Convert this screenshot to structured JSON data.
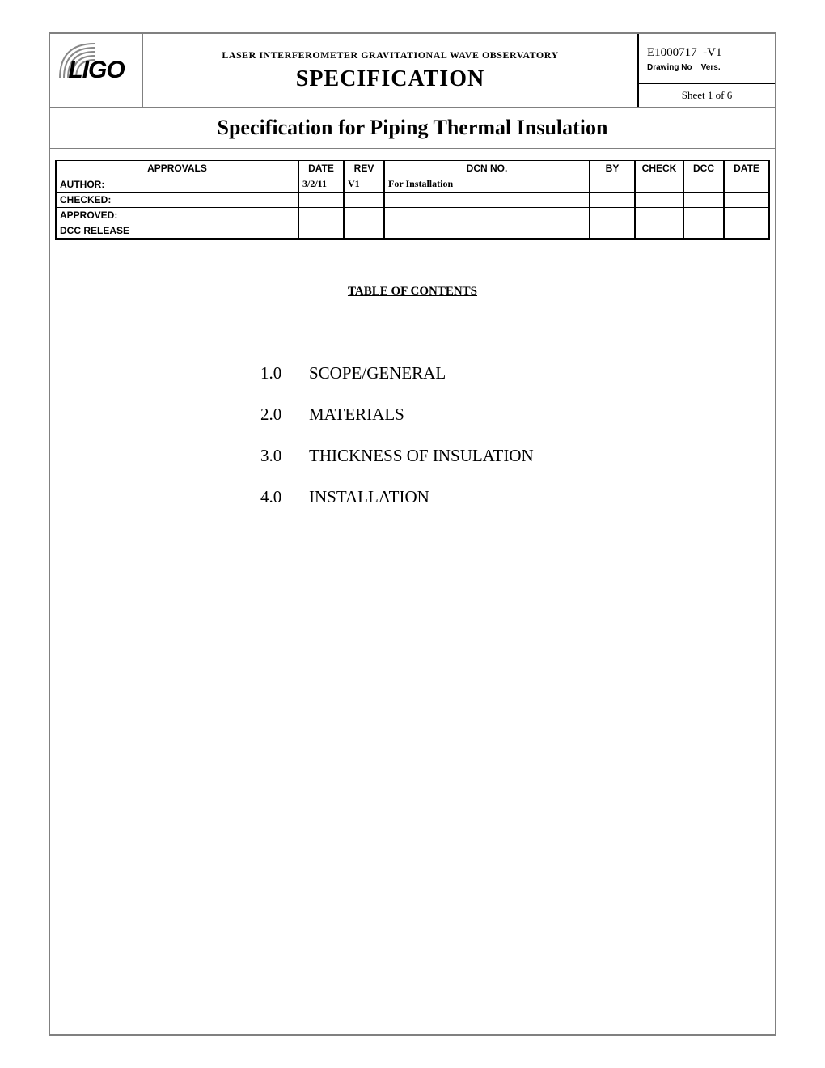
{
  "header": {
    "logo_text": "LIGO",
    "org_line": "LASER INTERFEROMETER GRAVITATIONAL WAVE OBSERVATORY",
    "spec_title": "SPECIFICATION",
    "drawing_no": "E1000717",
    "version": "-V1",
    "drawing_label": "Drawing No",
    "vers_label": "Vers.",
    "sheet_text": "Sheet 1   of   6"
  },
  "doc_title": "Specification for Piping Thermal Insulation",
  "approvals": {
    "columns": [
      "APPROVALS",
      "DATE",
      "REV",
      "DCN NO.",
      "BY",
      "CHECK",
      "DCC",
      "DATE"
    ],
    "rows": [
      {
        "label": "AUTHOR:",
        "date": "3/2/11",
        "rev": "V1",
        "dcn": "For Installation",
        "by": "",
        "check": "",
        "dcc": "",
        "date2": ""
      },
      {
        "label": "CHECKED:",
        "date": "",
        "rev": "",
        "dcn": "",
        "by": "",
        "check": "",
        "dcc": "",
        "date2": ""
      },
      {
        "label": "APPROVED:",
        "date": "",
        "rev": "",
        "dcn": "",
        "by": "",
        "check": "",
        "dcc": "",
        "date2": ""
      },
      {
        "label": "DCC RELEASE",
        "date": "",
        "rev": "",
        "dcn": "",
        "by": "",
        "check": "",
        "dcc": "",
        "date2": ""
      }
    ]
  },
  "toc": {
    "heading": "TABLE OF CONTENTS",
    "items": [
      {
        "num": "1.0",
        "text": "SCOPE/GENERAL"
      },
      {
        "num": "2.0",
        "text": "MATERIALS"
      },
      {
        "num": "3.0",
        "text": "THICKNESS OF INSULATION"
      },
      {
        "num": "4.0",
        "text": "INSTALLATION"
      }
    ]
  },
  "style": {
    "border_color": "#808080",
    "text_color": "#000000",
    "bg_color": "#ffffff"
  }
}
